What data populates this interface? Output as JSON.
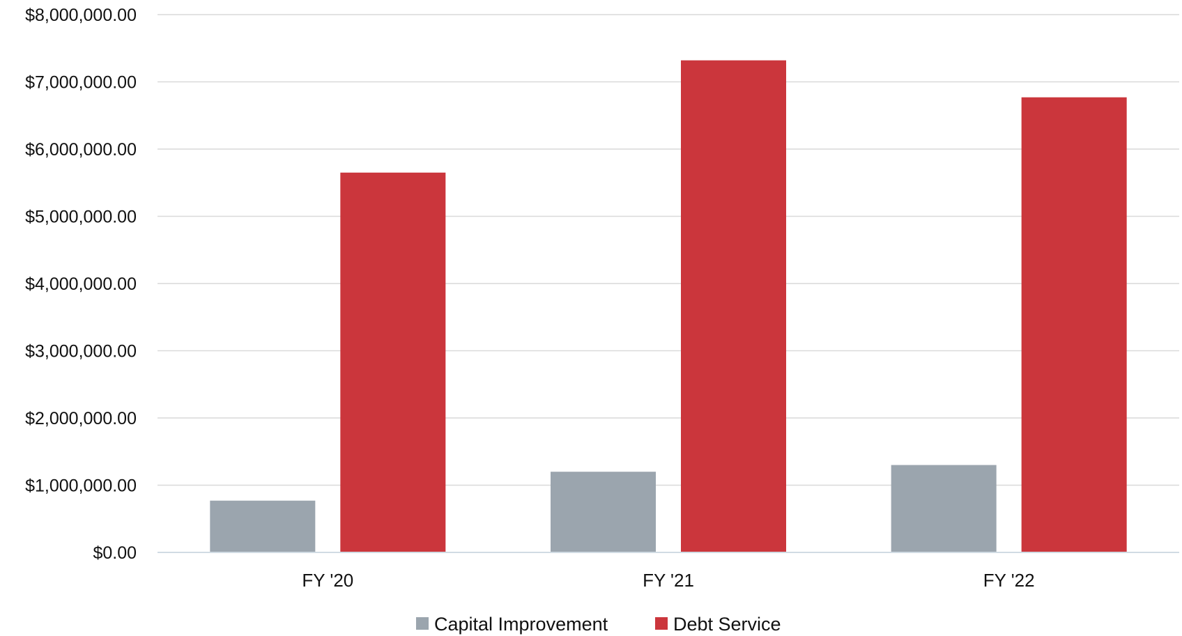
{
  "chart_data": {
    "type": "bar",
    "categories": [
      "FY '20",
      "FY '21",
      "FY '22"
    ],
    "series": [
      {
        "name": "Capital Improvement",
        "color": "#9ba5ae",
        "values": [
          770000,
          1200000,
          1300000
        ]
      },
      {
        "name": "Debt Service",
        "color": "#cb363c",
        "values": [
          5650000,
          7320000,
          6770000
        ]
      }
    ],
    "ylim": [
      0,
      8000000
    ],
    "yticks": [
      0,
      1000000,
      2000000,
      3000000,
      4000000,
      5000000,
      6000000,
      7000000,
      8000000
    ],
    "ytick_labels": [
      "$0.00",
      "$1,000,000.00",
      "$2,000,000.00",
      "$3,000,000.00",
      "$4,000,000.00",
      "$5,000,000.00",
      "$6,000,000.00",
      "$7,000,000.00",
      "$8,000,000.00"
    ],
    "grid": true,
    "legend_position": "bottom",
    "title": "",
    "xlabel": "",
    "ylabel": ""
  }
}
